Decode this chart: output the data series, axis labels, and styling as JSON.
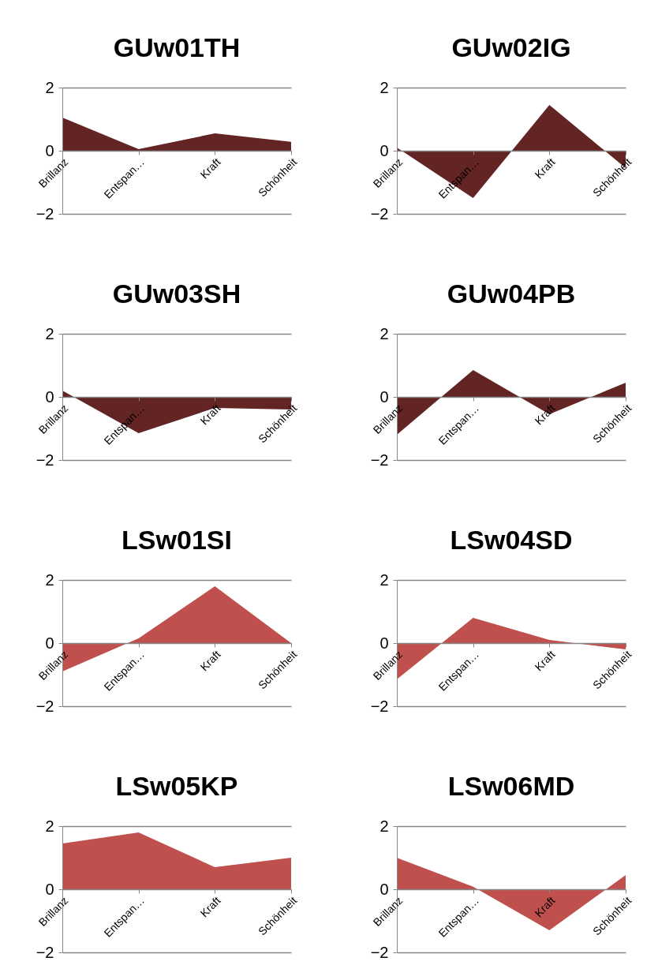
{
  "chart_data": [
    {
      "type": "area",
      "title": "GUw01TH",
      "categories": [
        "Brillanz",
        "Entspan…",
        "Kraft",
        "Schönheit"
      ],
      "series": [
        {
          "color": "#632523",
          "values": [
            1.05,
            0.05,
            0.55,
            0.28
          ]
        }
      ],
      "ylim": [
        -2,
        2
      ],
      "yticks": [
        -2,
        0,
        2
      ],
      "grid": "y"
    },
    {
      "type": "area",
      "title": "GUw02IG",
      "categories": [
        "Brillanz",
        "Entspan…",
        "Kraft",
        "Schönheit"
      ],
      "series": [
        {
          "color": "#632523",
          "values": [
            0.1,
            -1.5,
            1.45,
            -0.55
          ]
        }
      ],
      "ylim": [
        -2,
        2
      ],
      "yticks": [
        -2,
        0,
        2
      ],
      "grid": "y"
    },
    {
      "type": "area",
      "title": "GUw03SH",
      "categories": [
        "Brillanz",
        "Entspan…",
        "Kraft",
        "Schönheit"
      ],
      "series": [
        {
          "color": "#632523",
          "values": [
            0.2,
            -1.15,
            -0.35,
            -0.4
          ]
        }
      ],
      "ylim": [
        -2,
        2
      ],
      "yticks": [
        -2,
        0,
        2
      ],
      "grid": "y"
    },
    {
      "type": "area",
      "title": "GUw04PB",
      "categories": [
        "Brillanz",
        "Entspan…",
        "Kraft",
        "Schönheit"
      ],
      "series": [
        {
          "color": "#632523",
          "values": [
            -1.2,
            0.85,
            -0.55,
            0.45
          ]
        }
      ],
      "ylim": [
        -2,
        2
      ],
      "yticks": [
        -2,
        0,
        2
      ],
      "grid": "y"
    },
    {
      "type": "area",
      "title": "LSw01SI",
      "categories": [
        "Brillanz",
        "Entspan…",
        "Kraft",
        "Schönheit"
      ],
      "series": [
        {
          "color": "#c0504d",
          "values": [
            -0.9,
            0.15,
            1.8,
            0.0
          ]
        }
      ],
      "ylim": [
        -2,
        2
      ],
      "yticks": [
        -2,
        0,
        2
      ],
      "grid": "y"
    },
    {
      "type": "area",
      "title": "LSw04SD",
      "categories": [
        "Brillanz",
        "Entspan…",
        "Kraft",
        "Schönheit"
      ],
      "series": [
        {
          "color": "#c0504d",
          "values": [
            -1.15,
            0.8,
            0.1,
            -0.2
          ]
        }
      ],
      "ylim": [
        -2,
        2
      ],
      "yticks": [
        -2,
        0,
        2
      ],
      "grid": "y"
    },
    {
      "type": "area",
      "title": "LSw05KP",
      "categories": [
        "Brillanz",
        "Entspan…",
        "Kraft",
        "Schönheit"
      ],
      "series": [
        {
          "color": "#c0504d",
          "values": [
            1.45,
            1.8,
            0.7,
            1.0
          ]
        }
      ],
      "ylim": [
        -2,
        2
      ],
      "yticks": [
        -2,
        0,
        2
      ],
      "grid": "y"
    },
    {
      "type": "area",
      "title": "LSw06MD",
      "categories": [
        "Brillanz",
        "Entspan…",
        "Kraft",
        "Schönheit"
      ],
      "series": [
        {
          "color": "#c0504d",
          "values": [
            1.0,
            0.08,
            -1.3,
            0.45
          ]
        }
      ],
      "ylim": [
        -2,
        2
      ],
      "yticks": [
        -2,
        0,
        2
      ],
      "grid": "y"
    }
  ]
}
